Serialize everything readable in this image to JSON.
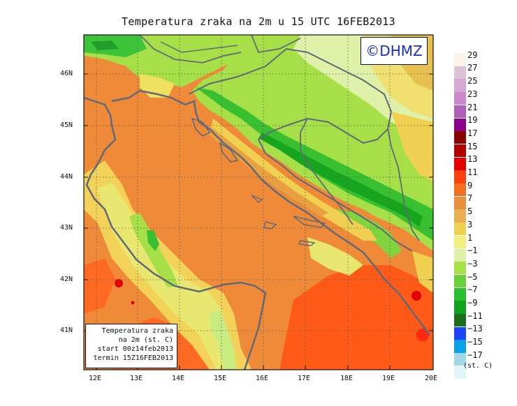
{
  "title": "Temperatura zraka na 2m u 15 UTC 16FEB2013",
  "logo": "©DHMZ",
  "info": {
    "line1": "Temperatura zraka",
    "line2": "na 2m (st. C)",
    "line3": "start 00z14feb2013",
    "line4": "termin 15Z16FEB2013"
  },
  "lat_labels": [
    "46N",
    "45N",
    "44N",
    "43N",
    "42N",
    "41N"
  ],
  "lon_labels": [
    "12E",
    "13E",
    "14E",
    "15E",
    "16E",
    "17E",
    "18E",
    "19E",
    "20E"
  ],
  "legend": {
    "units": "(st. C)",
    "labels": [
      "29",
      "27",
      "25",
      "23",
      "21",
      "19",
      "17",
      "15",
      "13",
      "11",
      "9",
      "7",
      "5",
      "3",
      "1",
      "−1",
      "−3",
      "−5",
      "−7",
      "−9",
      "−11",
      "−13",
      "−15",
      "−17"
    ],
    "colors": [
      "#fdf3e6",
      "#dcc4d8",
      "#d6a8d6",
      "#cc88cc",
      "#b060b8",
      "#880088",
      "#880000",
      "#b30000",
      "#e00000",
      "#ff4010",
      "#f07020",
      "#e89040",
      "#e8b050",
      "#f0d050",
      "#f0f080",
      "#dff0a8",
      "#a8e048",
      "#6cd03c",
      "#28c02c",
      "#12a020",
      "#1b6f1b",
      "#1a44ff",
      "#0ca0e8",
      "#a0d8e4",
      "#e0f6f8"
    ]
  },
  "map": {
    "sea_color": "#ef8a38",
    "land_color": "#a6df48",
    "coast_color": "#616976"
  }
}
